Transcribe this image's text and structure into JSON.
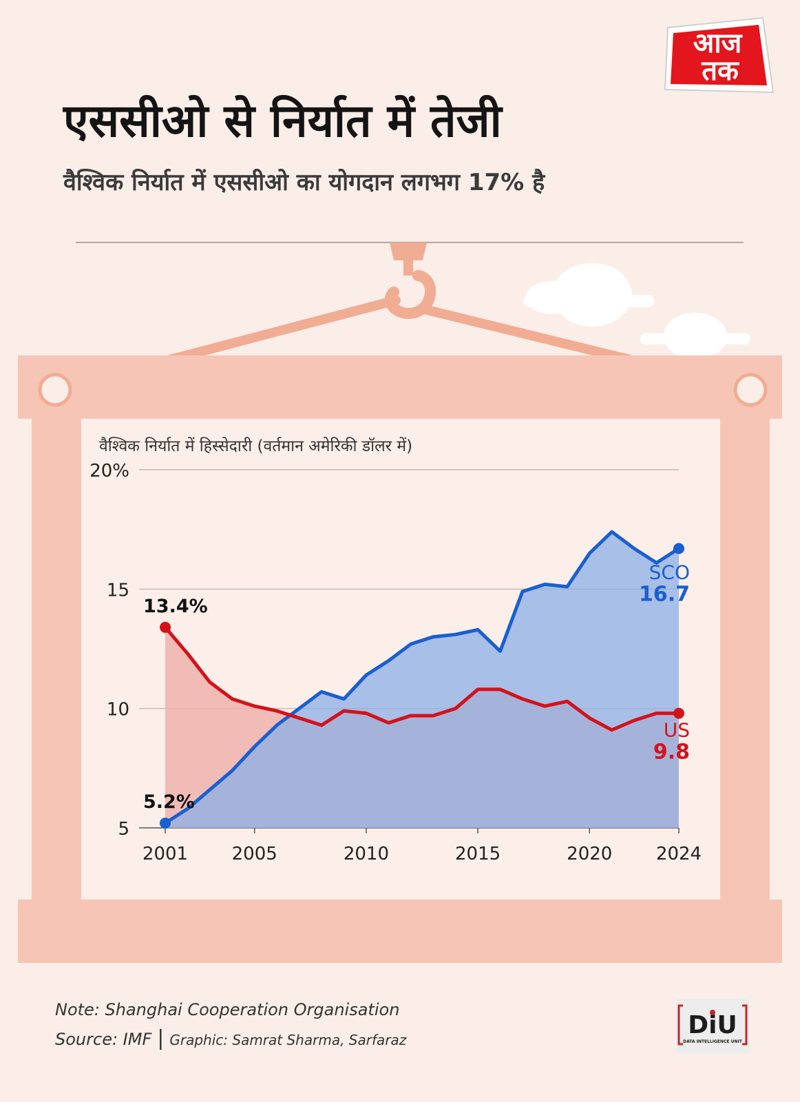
{
  "brand": {
    "logo_line1": "आज",
    "logo_line2": "तक"
  },
  "title": "एससीओ से निर्यात में तेजी",
  "subtitle": "वैश्विक निर्यात में एससीओ का योगदान लगभग 17% है",
  "chart_data": {
    "type": "area",
    "title": "वैश्विक निर्यात में हिस्सेदारी (वर्तमान अमेरिकी डॉलर में)",
    "x_ticks": [
      2001,
      2005,
      2010,
      2015,
      2020,
      2024
    ],
    "y_ticks": [
      5,
      10,
      15,
      20
    ],
    "y_tick_labels": [
      "5",
      "10",
      "15",
      "20%"
    ],
    "ylim": [
      5,
      20
    ],
    "xlim": [
      2001,
      2024
    ],
    "grid": true,
    "x": [
      2001,
      2002,
      2003,
      2004,
      2005,
      2006,
      2007,
      2008,
      2009,
      2010,
      2011,
      2012,
      2013,
      2014,
      2015,
      2016,
      2017,
      2018,
      2019,
      2020,
      2021,
      2022,
      2023,
      2024
    ],
    "series": [
      {
        "name": "SCO",
        "color": "#1a5fd0",
        "fill": "#8fb1e6",
        "values": [
          5.2,
          5.8,
          6.6,
          7.4,
          8.4,
          9.3,
          10.0,
          10.7,
          10.4,
          11.4,
          12.0,
          12.7,
          13.0,
          13.1,
          13.3,
          12.4,
          14.9,
          15.2,
          15.1,
          16.5,
          17.4,
          16.7,
          16.1,
          16.7
        ],
        "start_label": "5.2%",
        "end_name": "SCO",
        "end_value": "16.7"
      },
      {
        "name": "US",
        "color": "#d4121a",
        "fill": "#eeb2ad",
        "values": [
          13.4,
          12.3,
          11.1,
          10.4,
          10.1,
          9.9,
          9.6,
          9.3,
          9.9,
          9.8,
          9.4,
          9.7,
          9.7,
          10.0,
          10.8,
          10.8,
          10.4,
          10.1,
          10.3,
          9.6,
          9.1,
          9.5,
          9.8,
          9.8
        ],
        "start_label": "13.4%",
        "end_name": "US",
        "end_value": "9.8"
      }
    ]
  },
  "footer": {
    "note": "Note: Shanghai Cooperation Organisation",
    "source": "Source: IMF",
    "separator": "|",
    "graphic": "Graphic: Samrat Sharma, Sarfaraz"
  },
  "diu": {
    "mark": "DiU",
    "tagline": "DATA INTELLIGENCE UNIT"
  }
}
